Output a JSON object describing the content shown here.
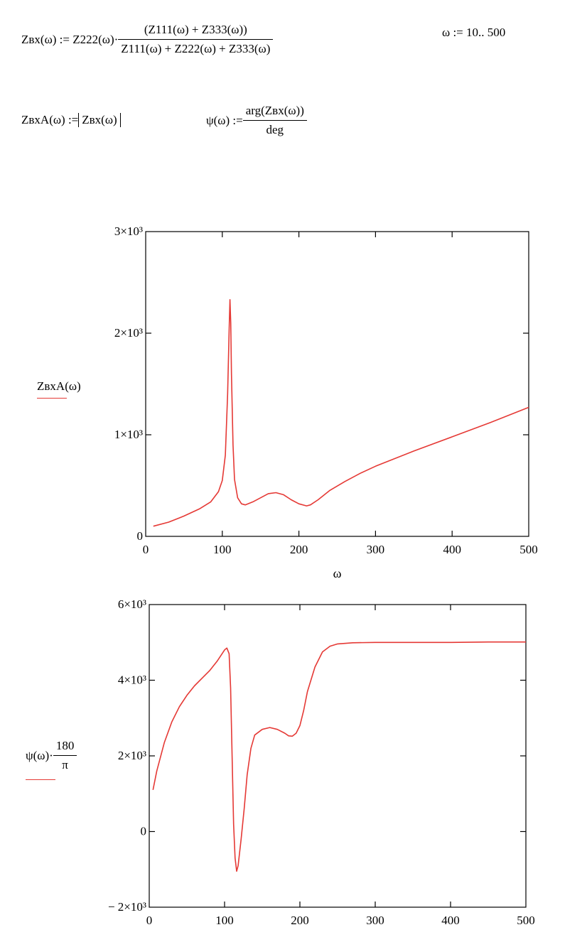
{
  "equations": {
    "eq1": {
      "lhs": "Zвх(ω) := Z222(ω)·",
      "numerator": "(Z111(ω) + Z333(ω))",
      "denominator": "Z111(ω) + Z222(ω) + Z333(ω)"
    },
    "range": "ω := 10.. 500",
    "eq2": {
      "lhs": "ZвхA(ω) := ",
      "abs_content": "Zвх(ω)"
    },
    "eq3": {
      "lhs": "ψ(ω) := ",
      "numerator": "arg(Zвх(ω))",
      "denominator": "deg"
    }
  },
  "colors": {
    "curve": "#e53935",
    "axes": "#000000"
  },
  "chart_data": [
    {
      "type": "line",
      "xlabel": "ω",
      "ylabel": "ZвхA(ω)",
      "xlim": [
        0,
        500
      ],
      "ylim": [
        0,
        3000
      ],
      "xticks": [
        "0",
        "100",
        "200",
        "300",
        "400",
        "500"
      ],
      "yticks": [
        "0",
        "1×10³",
        "2×10³",
        "3×10³"
      ],
      "grid": false,
      "series": [
        {
          "x": [
            10,
            30,
            50,
            70,
            85,
            95,
            100,
            104,
            107,
            109,
            110,
            111,
            112,
            114,
            116,
            120,
            125,
            130,
            140,
            150,
            160,
            170,
            180,
            190,
            200,
            210,
            215,
            225,
            240,
            260,
            280,
            300,
            350,
            400,
            450,
            500
          ],
          "y": [
            100,
            140,
            200,
            270,
            340,
            440,
            550,
            800,
            1400,
            2050,
            2330,
            2100,
            1600,
            900,
            560,
            380,
            320,
            310,
            340,
            380,
            420,
            430,
            410,
            360,
            320,
            300,
            310,
            360,
            450,
            540,
            620,
            690,
            840,
            980,
            1120,
            1270
          ]
        }
      ]
    },
    {
      "type": "line",
      "xlabel": "",
      "ylabel": "ψ(ω)·180/π",
      "ylabel_main": "ψ(ω)·",
      "ylabel_frac_num": "180",
      "ylabel_frac_den": "π",
      "xlim": [
        0,
        500
      ],
      "ylim": [
        -2000,
        6000
      ],
      "xticks": [
        "0",
        "100",
        "200",
        "300",
        "400",
        "500"
      ],
      "yticks": [
        "− 2×10³",
        "0",
        "2×10³",
        "4×10³",
        "6×10³"
      ],
      "grid": false,
      "series": [
        {
          "x": [
            5,
            10,
            20,
            30,
            40,
            50,
            60,
            70,
            80,
            90,
            100,
            103,
            106,
            108,
            110,
            112,
            114,
            116,
            118,
            122,
            126,
            130,
            135,
            140,
            150,
            160,
            170,
            180,
            185,
            190,
            195,
            200,
            205,
            210,
            220,
            230,
            240,
            250,
            270,
            300,
            350,
            400,
            450,
            500
          ],
          "y": [
            1100,
            1600,
            2350,
            2900,
            3300,
            3600,
            3850,
            4050,
            4250,
            4500,
            4800,
            4850,
            4700,
            3800,
            2000,
            200,
            -700,
            -1050,
            -900,
            -200,
            600,
            1500,
            2200,
            2550,
            2700,
            2750,
            2700,
            2600,
            2530,
            2520,
            2600,
            2800,
            3200,
            3700,
            4350,
            4750,
            4900,
            4960,
            4990,
            5000,
            5000,
            5000,
            5010,
            5010
          ]
        }
      ]
    }
  ]
}
